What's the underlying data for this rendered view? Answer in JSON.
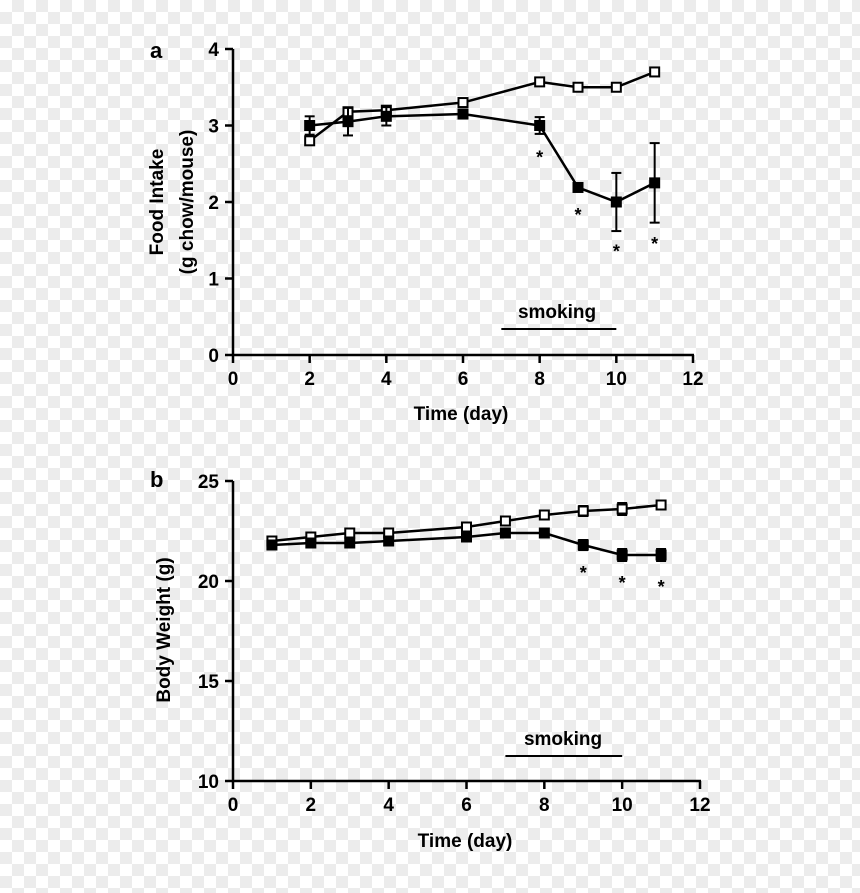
{
  "chart_data": [
    {
      "type": "line",
      "panel_label": "a",
      "xlabel": "Time (day)",
      "ylabel": "Food Intake",
      "ylabel2": "(g chow/mouse)",
      "xlim": [
        0,
        12
      ],
      "ylim": [
        0,
        4
      ],
      "xticks": [
        0,
        2,
        4,
        6,
        8,
        10,
        12
      ],
      "yticks": [
        0,
        1,
        2,
        3,
        4
      ],
      "grid": false,
      "series": [
        {
          "marker": "open-square",
          "x": [
            2,
            3,
            4,
            6,
            8,
            9,
            10,
            11
          ],
          "y": [
            2.8,
            3.18,
            3.2,
            3.3,
            3.57,
            3.5,
            3.5,
            3.7
          ],
          "err": [
            0.04,
            0.03,
            0.03,
            0.03,
            0.03,
            0.02,
            0.02,
            0.04
          ]
        },
        {
          "marker": "filled-square",
          "x": [
            2,
            3,
            4,
            6,
            8,
            9,
            10,
            11
          ],
          "y": [
            3.0,
            3.05,
            3.12,
            3.15,
            3.0,
            2.19,
            2.0,
            2.25
          ],
          "err": [
            0.12,
            0.18,
            0.12,
            0.03,
            0.11,
            0.03,
            0.38,
            0.52
          ]
        }
      ],
      "annotation": {
        "text": "smoking",
        "bar": [
          7,
          10
        ]
      },
      "significance": {
        "symbol": "*",
        "x": [
          8,
          9,
          10,
          11
        ],
        "y": [
          2.58,
          1.83,
          1.35,
          1.45
        ]
      }
    },
    {
      "type": "line",
      "panel_label": "b",
      "xlabel": "Time (day)",
      "ylabel": "Body Weight (g)",
      "xlim": [
        0,
        12
      ],
      "ylim": [
        10,
        25
      ],
      "xticks": [
        0,
        2,
        4,
        6,
        8,
        10,
        12
      ],
      "yticks": [
        10,
        15,
        20,
        25
      ],
      "grid": false,
      "series": [
        {
          "marker": "open-square",
          "x": [
            1,
            2,
            3,
            4,
            6,
            7,
            8,
            9,
            10,
            11
          ],
          "y": [
            22.0,
            22.2,
            22.4,
            22.4,
            22.7,
            23.0,
            23.3,
            23.5,
            23.6,
            23.8
          ],
          "err": [
            0.2,
            0.2,
            0.2,
            0.15,
            0.2,
            0.2,
            0.15,
            0.25,
            0.3,
            0.2
          ]
        },
        {
          "marker": "filled-square",
          "x": [
            1,
            2,
            3,
            4,
            6,
            7,
            8,
            9,
            10,
            11
          ],
          "y": [
            21.8,
            21.9,
            21.9,
            22.0,
            22.2,
            22.4,
            22.4,
            21.8,
            21.3,
            21.3
          ],
          "err": [
            0.15,
            0.15,
            0.15,
            0.15,
            0.15,
            0.15,
            0.2,
            0.25,
            0.3,
            0.3
          ]
        }
      ],
      "annotation": {
        "text": "smoking",
        "bar": [
          7,
          10
        ]
      },
      "significance": {
        "symbol": "*",
        "x": [
          9,
          10,
          11
        ],
        "y": [
          20.4,
          19.9,
          19.7
        ]
      }
    }
  ]
}
